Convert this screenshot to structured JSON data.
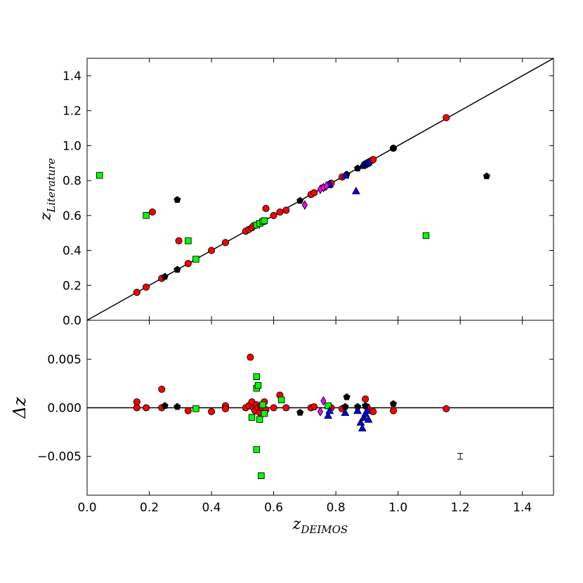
{
  "chart_data": [
    {
      "type": "scatter",
      "panel": "top",
      "title": "",
      "xlabel": "",
      "ylabel": {
        "base": "z",
        "sub": "Literature"
      },
      "xlim": [
        0.0,
        1.5
      ],
      "ylim": [
        0.0,
        1.5
      ],
      "xticks": [
        "0.0",
        "0.2",
        "0.4",
        "0.6",
        "0.8",
        "1.0",
        "1.2",
        "1.4"
      ],
      "yticks": [
        "0.0",
        "0.2",
        "0.4",
        "0.6",
        "0.8",
        "1.0",
        "1.2",
        "1.4"
      ],
      "grid": false,
      "reference_line": {
        "kind": "identity",
        "from": [
          0.0,
          0.0
        ],
        "to": [
          1.5,
          1.5
        ]
      },
      "series": [
        {
          "marker": "circle",
          "color": "#ff0000",
          "points": [
            [
              0.16,
              0.16
            ],
            [
              0.19,
              0.19
            ],
            [
              0.21,
              0.62
            ],
            [
              0.24,
              0.24
            ],
            [
              0.295,
              0.455
            ],
            [
              0.325,
              0.325
            ],
            [
              0.4,
              0.4
            ],
            [
              0.445,
              0.445
            ],
            [
              0.51,
              0.51
            ],
            [
              0.52,
              0.52
            ],
            [
              0.53,
              0.53
            ],
            [
              0.535,
              0.54
            ],
            [
              0.545,
              0.545
            ],
            [
              0.55,
              0.55
            ],
            [
              0.56,
              0.56
            ],
            [
              0.575,
              0.64
            ],
            [
              0.6,
              0.6
            ],
            [
              0.62,
              0.62
            ],
            [
              0.64,
              0.63
            ],
            [
              0.72,
              0.72
            ],
            [
              0.73,
              0.73
            ],
            [
              0.76,
              0.76
            ],
            [
              0.785,
              0.785
            ],
            [
              0.82,
              0.82
            ],
            [
              0.895,
              0.895
            ],
            [
              0.905,
              0.905
            ],
            [
              0.915,
              0.915
            ],
            [
              0.92,
              0.92
            ],
            [
              0.985,
              0.985
            ],
            [
              1.155,
              1.16
            ]
          ]
        },
        {
          "marker": "square",
          "color": "#00ff00",
          "points": [
            [
              0.04,
              0.83
            ],
            [
              0.19,
              0.6
            ],
            [
              0.325,
              0.455
            ],
            [
              0.35,
              0.35
            ],
            [
              0.545,
              0.545
            ],
            [
              0.555,
              0.555
            ],
            [
              0.565,
              0.565
            ],
            [
              0.57,
              0.57
            ],
            [
              1.09,
              0.485
            ]
          ]
        },
        {
          "marker": "pentagon",
          "color": "#000000",
          "points": [
            [
              0.25,
              0.25
            ],
            [
              0.29,
              0.29
            ],
            [
              0.29,
              0.69
            ],
            [
              0.685,
              0.685
            ],
            [
              0.835,
              0.835
            ],
            [
              0.87,
              0.87
            ],
            [
              0.895,
              0.895
            ],
            [
              0.985,
              0.985
            ],
            [
              1.285,
              0.825
            ]
          ]
        },
        {
          "marker": "triangle",
          "color": "#0000ff",
          "points": [
            [
              0.775,
              0.775
            ],
            [
              0.78,
              0.78
            ],
            [
              0.83,
              0.83
            ],
            [
              0.865,
              0.74
            ],
            [
              0.885,
              0.885
            ],
            [
              0.89,
              0.89
            ],
            [
              0.895,
              0.895
            ],
            [
              0.9,
              0.9
            ],
            [
              0.905,
              0.905
            ]
          ]
        },
        {
          "marker": "diamond",
          "color": "#ff00ff",
          "points": [
            [
              0.7,
              0.66
            ],
            [
              0.75,
              0.75
            ],
            [
              0.76,
              0.76
            ],
            [
              0.77,
              0.77
            ]
          ]
        }
      ]
    },
    {
      "type": "scatter",
      "panel": "bottom",
      "title": "",
      "xlabel": {
        "base": "z",
        "sub": "DEIMOS"
      },
      "ylabel": {
        "base": "Δz",
        "sub": ""
      },
      "xlim": [
        0.0,
        1.5
      ],
      "ylim": [
        -0.009,
        0.009
      ],
      "xticks": [
        "0.0",
        "0.2",
        "0.4",
        "0.6",
        "0.8",
        "1.0",
        "1.2",
        "1.4"
      ],
      "yticks": [
        "−0.005",
        "0.000",
        "0.005"
      ],
      "grid": false,
      "reference_line": {
        "kind": "horizontal",
        "y": 0.0
      },
      "error_bar": {
        "x": 1.2,
        "y": -0.005,
        "yerr": 0.0003
      },
      "series": [
        {
          "marker": "circle",
          "color": "#ff0000",
          "points": [
            [
              0.16,
              0.0006
            ],
            [
              0.16,
              0.0
            ],
            [
              0.19,
              0.0
            ],
            [
              0.24,
              0.0019
            ],
            [
              0.24,
              0.0
            ],
            [
              0.325,
              -0.0003
            ],
            [
              0.4,
              -0.0004
            ],
            [
              0.445,
              0.0002
            ],
            [
              0.445,
              -0.0001
            ],
            [
              0.51,
              0.0
            ],
            [
              0.52,
              0.0002
            ],
            [
              0.525,
              0.0052
            ],
            [
              0.53,
              0.0006
            ],
            [
              0.535,
              0.0
            ],
            [
              0.54,
              -0.0003
            ],
            [
              0.545,
              0.0003
            ],
            [
              0.55,
              0.0
            ],
            [
              0.555,
              -0.0005
            ],
            [
              0.56,
              0.0001
            ],
            [
              0.565,
              -0.0001
            ],
            [
              0.57,
              0.0006
            ],
            [
              0.575,
              -0.0002
            ],
            [
              0.6,
              0.0
            ],
            [
              0.62,
              0.0013
            ],
            [
              0.64,
              0.0
            ],
            [
              0.72,
              0.0
            ],
            [
              0.73,
              0.0001
            ],
            [
              0.785,
              0.0
            ],
            [
              0.82,
              -0.0001
            ],
            [
              0.895,
              0.0009
            ],
            [
              0.9,
              0.0001
            ],
            [
              0.915,
              -0.0003
            ],
            [
              0.92,
              -0.0004
            ],
            [
              0.985,
              -0.0003
            ],
            [
              1.155,
              -0.0001
            ]
          ]
        },
        {
          "marker": "square",
          "color": "#00ff00",
          "points": [
            [
              0.35,
              -0.0001
            ],
            [
              0.53,
              -0.001
            ],
            [
              0.545,
              0.0032
            ],
            [
              0.545,
              0.002
            ],
            [
              0.55,
              0.0023
            ],
            [
              0.545,
              -0.0043
            ],
            [
              0.555,
              -0.0012
            ],
            [
              0.56,
              -0.007
            ],
            [
              0.565,
              0.0003
            ],
            [
              0.57,
              -0.0006
            ],
            [
              0.625,
              0.0008
            ],
            [
              0.775,
              0.0002
            ]
          ]
        },
        {
          "marker": "pentagon",
          "color": "#000000",
          "points": [
            [
              0.25,
              0.0002
            ],
            [
              0.29,
              0.0001
            ],
            [
              0.685,
              -0.0005
            ],
            [
              0.835,
              0.0011
            ],
            [
              0.83,
              0.0001
            ],
            [
              0.87,
              0.0001
            ],
            [
              0.895,
              0.0002
            ],
            [
              0.985,
              0.0004
            ]
          ]
        },
        {
          "marker": "triangle",
          "color": "#0000ff",
          "points": [
            [
              0.775,
              -0.0008
            ],
            [
              0.78,
              -0.0003
            ],
            [
              0.83,
              -0.0005
            ],
            [
              0.87,
              -0.0003
            ],
            [
              0.88,
              -0.0015
            ],
            [
              0.885,
              -0.0021
            ],
            [
              0.89,
              -0.001
            ],
            [
              0.895,
              -0.0006
            ],
            [
              0.9,
              -0.0003
            ],
            [
              0.905,
              -0.0012
            ]
          ]
        },
        {
          "marker": "diamond",
          "color": "#ff00ff",
          "points": [
            [
              0.75,
              -0.0004
            ],
            [
              0.76,
              0.0007
            ]
          ]
        }
      ]
    }
  ]
}
